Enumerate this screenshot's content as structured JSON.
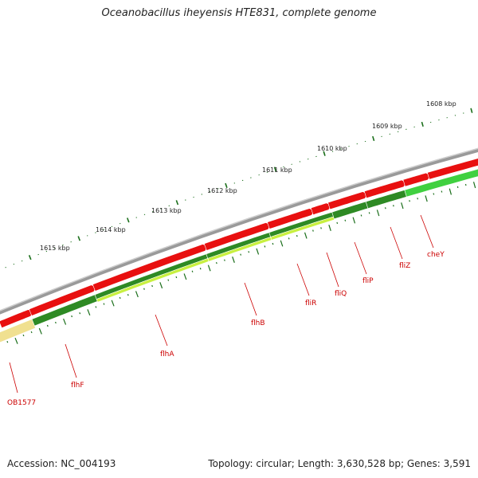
{
  "title": "Oceanobacillus iheyensis HTE831, complete genome",
  "footer": {
    "accession": "Accession: NC_004193",
    "summary": "Topology: circular; Length: 3,630,528 bp; Genes: 3,591"
  },
  "colors": {
    "backbone": "#8a8a8a",
    "forward_cds": "#e81010",
    "reverse_cds_dark": "#2e8a24",
    "reverse_cds_light": "#c8f040",
    "reverse_cds_green": "#40d040",
    "pseudo": "#f0e090",
    "label": "#cc0000",
    "tick": "#1a6e1a"
  },
  "ruler": {
    "labels": [
      "1608 kbp",
      "1609 kbp",
      "1610 kbp",
      "1611 kbp",
      "1612 kbp",
      "1613 kbp",
      "1614 kbp",
      "1615 kbp"
    ]
  },
  "genes": [
    {
      "label": "OB1577"
    },
    {
      "label": "flhF"
    },
    {
      "label": "flhA"
    },
    {
      "label": "flhB"
    },
    {
      "label": "fliR"
    },
    {
      "label": "fliQ"
    },
    {
      "label": "fliP"
    },
    {
      "label": "fliZ"
    },
    {
      "label": "cheY"
    }
  ]
}
